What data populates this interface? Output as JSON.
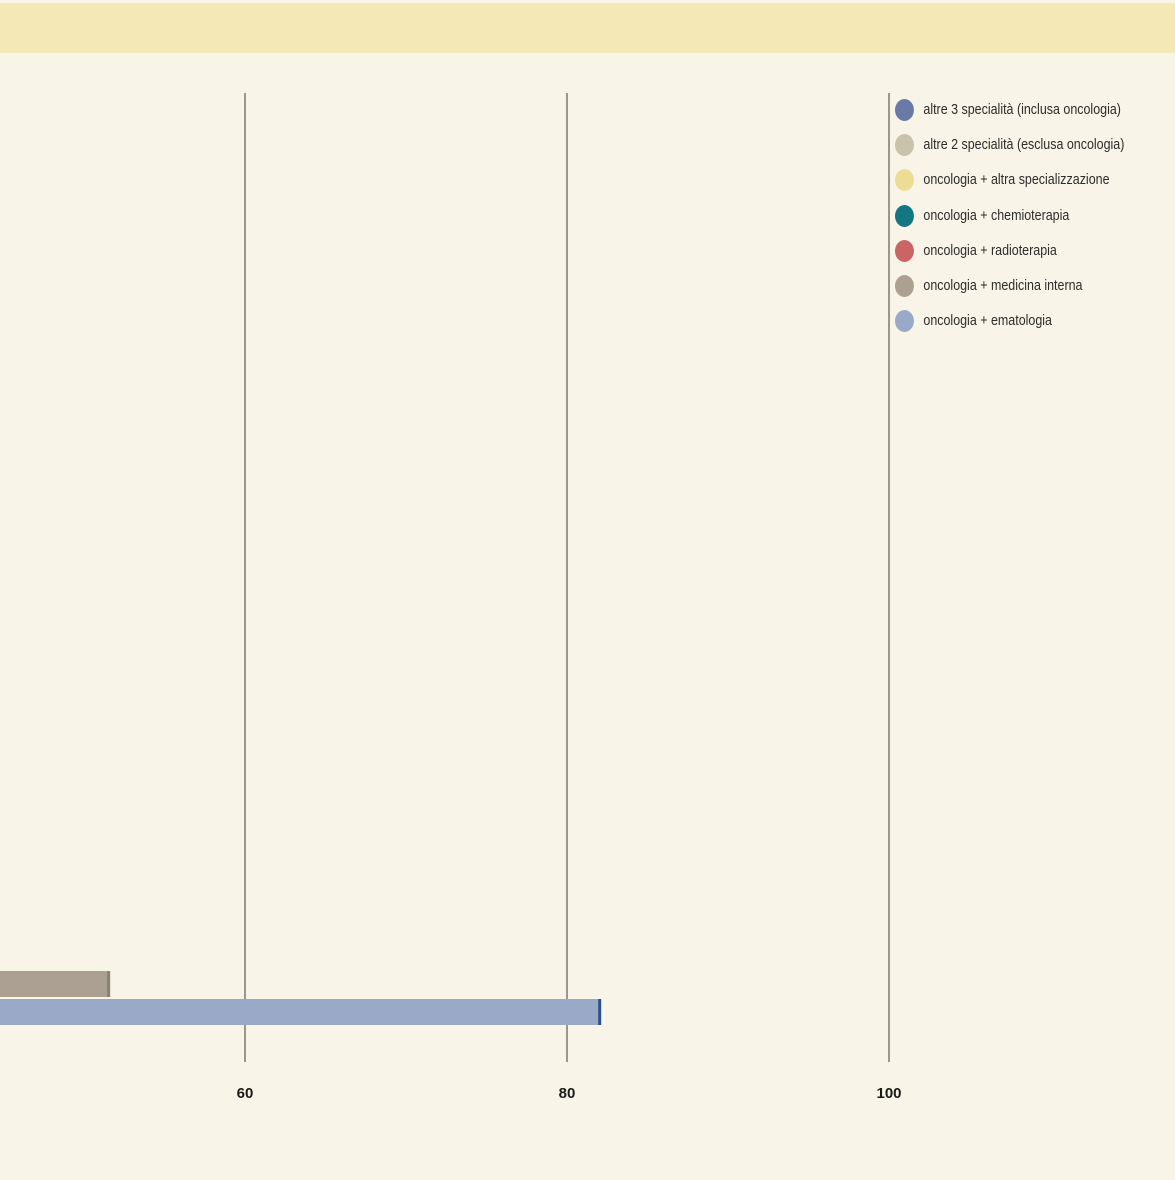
{
  "chart_data": {
    "type": "bar",
    "orientation": "horizontal",
    "title": "",
    "xlabel": "",
    "ylabel": "",
    "xlim": [
      45,
      120
    ],
    "x_ticks": [
      60,
      80,
      100
    ],
    "grid": true,
    "legend_position": "top-right",
    "series": [
      {
        "name": "altre 3 specialità (inclusa oncologia)",
        "color": "#6a7aa6",
        "values": []
      },
      {
        "name": "altre 2 specialità (esclusa oncologia)",
        "color": "#c9c3ac",
        "values": []
      },
      {
        "name": "oncologia + altra specializzazione",
        "color": "#ecdc94",
        "values": []
      },
      {
        "name": "oncologia + chemioterapia",
        "color": "#137683",
        "values": []
      },
      {
        "name": "oncologia + radioterapia",
        "color": "#c96565",
        "values": []
      },
      {
        "name": "oncologia + medicina interna",
        "color": "#aba091",
        "values": [
          51.5
        ]
      },
      {
        "name": "oncologia + ematologia",
        "color": "#9aa9c8",
        "values": [
          82
        ]
      }
    ]
  }
}
